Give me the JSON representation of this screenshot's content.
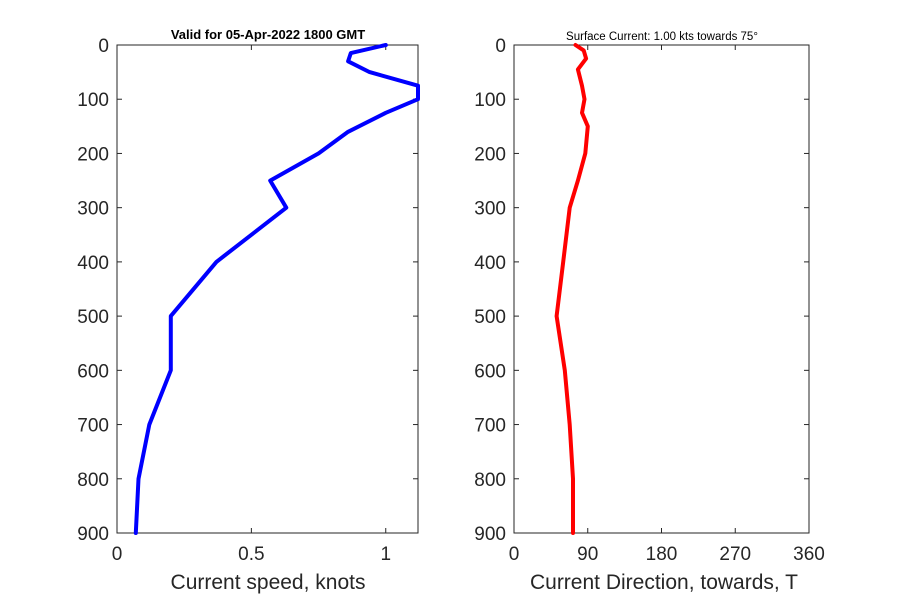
{
  "chart_data": [
    {
      "type": "line",
      "title": "Valid for 05-Apr-2022 1800 GMT",
      "xlabel": "Current speed, knots",
      "ylabel": "",
      "xlim": [
        0,
        1.12
      ],
      "ylim": [
        900,
        0
      ],
      "y_reversed": true,
      "xticks": [
        "0",
        "0.5",
        "1"
      ],
      "xtick_values": [
        0,
        0.5,
        1
      ],
      "yticks": [
        "0",
        "100",
        "200",
        "300",
        "400",
        "500",
        "600",
        "700",
        "800",
        "900"
      ],
      "ytick_values": [
        0,
        100,
        200,
        300,
        400,
        500,
        600,
        700,
        800,
        900
      ],
      "grid": false,
      "color": "#0000FF",
      "series": [
        {
          "x": [
            1.0,
            0.87,
            0.86,
            0.94,
            1.12,
            1.12,
            1.0,
            0.86,
            0.75,
            0.57,
            0.63,
            0.37,
            0.2,
            0.2,
            0.12,
            0.08,
            0.07
          ],
          "y": [
            0,
            15,
            30,
            50,
            75,
            100,
            125,
            160,
            200,
            250,
            300,
            400,
            500,
            600,
            700,
            800,
            900
          ]
        }
      ]
    },
    {
      "type": "line",
      "title": "Surface Current: 1.00 kts towards 75°",
      "xlabel": "Current Direction, towards, T",
      "ylabel": "",
      "xlim": [
        0,
        360
      ],
      "ylim": [
        900,
        0
      ],
      "y_reversed": true,
      "xticks": [
        "0",
        "90",
        "180",
        "270",
        "360"
      ],
      "xtick_values": [
        0,
        90,
        180,
        270,
        360
      ],
      "yticks": [
        "0",
        "100",
        "200",
        "300",
        "400",
        "500",
        "600",
        "700",
        "800",
        "900"
      ],
      "ytick_values": [
        0,
        100,
        200,
        300,
        400,
        500,
        600,
        700,
        800,
        900
      ],
      "grid": false,
      "color": "#FF0000",
      "series": [
        {
          "x": [
            75,
            85,
            88,
            78,
            83,
            86,
            83,
            90,
            87,
            78,
            68,
            60,
            52,
            62,
            68,
            72,
            72
          ],
          "y": [
            0,
            10,
            25,
            45,
            75,
            100,
            125,
            150,
            200,
            250,
            300,
            400,
            500,
            600,
            700,
            800,
            900
          ]
        }
      ]
    }
  ]
}
